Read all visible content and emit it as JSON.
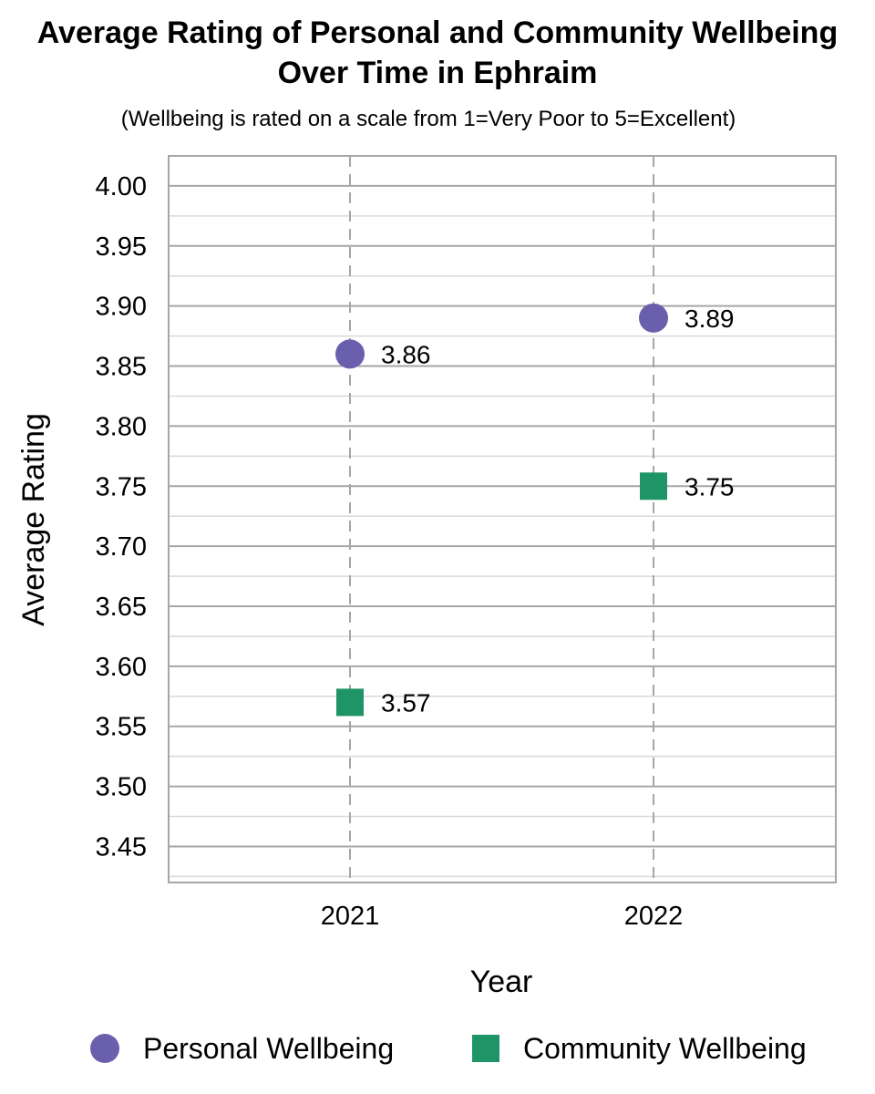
{
  "chart_data": {
    "type": "scatter",
    "title": "Average Rating of Personal and Community Wellbeing\nOver Time in Ephraim",
    "subtitle": "(Wellbeing is rated on a scale from 1=Very Poor to 5=Excellent)",
    "xlabel": "Year",
    "ylabel": "Average Rating",
    "categories": [
      "2021",
      "2022"
    ],
    "ylim": [
      3.42,
      4.025
    ],
    "yticks": [
      "4.00",
      "3.95",
      "3.90",
      "3.85",
      "3.80",
      "3.75",
      "3.70",
      "3.65",
      "3.60",
      "3.55",
      "3.50",
      "3.45"
    ],
    "grid": true,
    "legend_position": "bottom",
    "series": [
      {
        "name": "Personal Wellbeing",
        "marker": "circle",
        "color": "#6a5fad",
        "values": [
          3.86,
          3.89
        ],
        "labels": [
          "3.86",
          "3.89"
        ]
      },
      {
        "name": "Community Wellbeing",
        "marker": "square",
        "color": "#1f9466",
        "values": [
          3.57,
          3.75
        ],
        "labels": [
          "3.57",
          "3.75"
        ]
      }
    ]
  }
}
